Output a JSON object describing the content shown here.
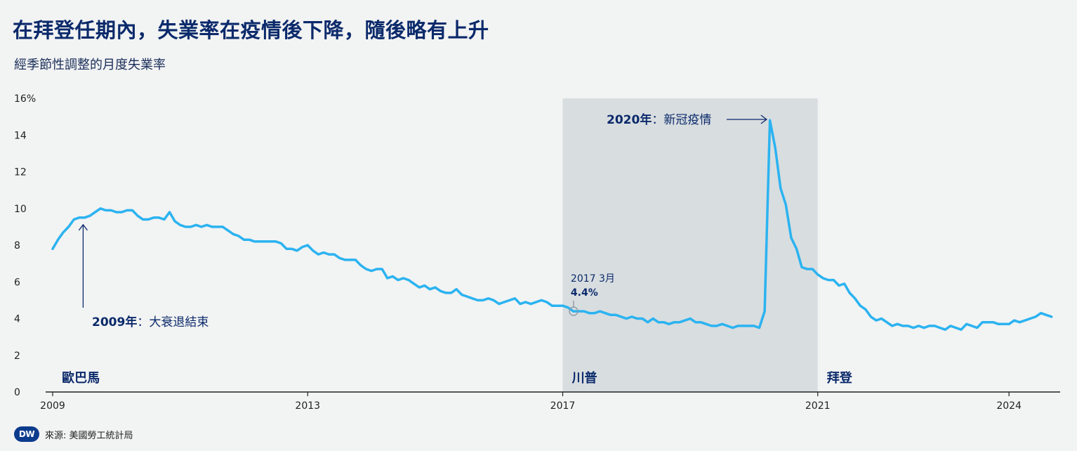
{
  "title": "在拜登任期內，失業率在疫情後下降，隨後略有上升",
  "subtitle": "經季節性調整的月度失業率",
  "footer": {
    "logo": "DW",
    "source": "來源: 美國勞工統計局"
  },
  "colors": {
    "line": "#2bb3f0",
    "shade": "#d8dde0",
    "text": "#0b2a6b",
    "axis": "#222222"
  },
  "chart_data": {
    "type": "line",
    "title": "在拜登任期內，失業率在疫情後下降，隨後略有上升",
    "subtitle": "經季節性調整的月度失業率",
    "xlabel": "",
    "ylabel": "",
    "ylim": [
      0,
      16
    ],
    "xlim": [
      2009.0,
      2024.67
    ],
    "grid": false,
    "yticks": [
      {
        "value": 0,
        "label": "0"
      },
      {
        "value": 2,
        "label": "2"
      },
      {
        "value": 4,
        "label": "4"
      },
      {
        "value": 6,
        "label": "6"
      },
      {
        "value": 8,
        "label": "8"
      },
      {
        "value": 10,
        "label": "10"
      },
      {
        "value": 12,
        "label": "12"
      },
      {
        "value": 14,
        "label": "14"
      },
      {
        "value": 16,
        "label": "16%"
      }
    ],
    "xticks": [
      {
        "value": 2009,
        "label": "2009"
      },
      {
        "value": 2013,
        "label": "2013"
      },
      {
        "value": 2017,
        "label": "2017"
      },
      {
        "value": 2021,
        "label": "2021"
      },
      {
        "value": 2024,
        "label": "2024"
      }
    ],
    "shaded_period": {
      "start": 2017.0,
      "end": 2021.0
    },
    "presidents": [
      {
        "label": "歐巴馬",
        "x": 2009.1
      },
      {
        "label": "川普",
        "x": 2017.1
      },
      {
        "label": "拜登",
        "x": 2021.1
      }
    ],
    "annotations": [
      {
        "label_bold": "2009年",
        "label_rest": "：大衰退結束",
        "x": 2009.5,
        "y": 9.5
      },
      {
        "label_bold": "2020年",
        "label_rest": "：新冠疫情",
        "x": 2020.33,
        "y": 14.8
      },
      {
        "line1": "2017 3月",
        "line2": "4.4%",
        "x": 2017.17,
        "y": 4.4
      }
    ],
    "series": [
      {
        "start": 2009.0,
        "step_months": 1,
        "values": [
          7.8,
          8.3,
          8.7,
          9.0,
          9.4,
          9.5,
          9.5,
          9.6,
          9.8,
          10.0,
          9.9,
          9.9,
          9.8,
          9.8,
          9.9,
          9.9,
          9.6,
          9.4,
          9.4,
          9.5,
          9.5,
          9.4,
          9.8,
          9.3,
          9.1,
          9.0,
          9.0,
          9.1,
          9.0,
          9.1,
          9.0,
          9.0,
          9.0,
          8.8,
          8.6,
          8.5,
          8.3,
          8.3,
          8.2,
          8.2,
          8.2,
          8.2,
          8.2,
          8.1,
          7.8,
          7.8,
          7.7,
          7.9,
          8.0,
          7.7,
          7.5,
          7.6,
          7.5,
          7.5,
          7.3,
          7.2,
          7.2,
          7.2,
          6.9,
          6.7,
          6.6,
          6.7,
          6.7,
          6.2,
          6.3,
          6.1,
          6.2,
          6.1,
          5.9,
          5.7,
          5.8,
          5.6,
          5.7,
          5.5,
          5.4,
          5.4,
          5.6,
          5.3,
          5.2,
          5.1,
          5.0,
          5.0,
          5.1,
          5.0,
          4.8,
          4.9,
          5.0,
          5.1,
          4.8,
          4.9,
          4.8,
          4.9,
          5.0,
          4.9,
          4.7,
          4.7,
          4.7,
          4.6,
          4.4,
          4.4,
          4.4,
          4.3,
          4.3,
          4.4,
          4.3,
          4.2,
          4.2,
          4.1,
          4.0,
          4.1,
          4.0,
          4.0,
          3.8,
          4.0,
          3.8,
          3.8,
          3.7,
          3.8,
          3.8,
          3.9,
          4.0,
          3.8,
          3.8,
          3.7,
          3.6,
          3.6,
          3.7,
          3.6,
          3.5,
          3.6,
          3.6,
          3.6,
          3.6,
          3.5,
          4.4,
          14.8,
          13.3,
          11.1,
          10.2,
          8.4,
          7.8,
          6.8,
          6.7,
          6.7,
          6.4,
          6.2,
          6.1,
          6.1,
          5.8,
          5.9,
          5.4,
          5.1,
          4.7,
          4.5,
          4.1,
          3.9,
          4.0,
          3.8,
          3.6,
          3.7,
          3.6,
          3.6,
          3.5,
          3.6,
          3.5,
          3.6,
          3.6,
          3.5,
          3.4,
          3.6,
          3.5,
          3.4,
          3.7,
          3.6,
          3.5,
          3.8,
          3.8,
          3.8,
          3.7,
          3.7,
          3.7,
          3.9,
          3.8,
          3.9,
          4.0,
          4.1,
          4.3,
          4.2,
          4.1
        ]
      }
    ]
  }
}
